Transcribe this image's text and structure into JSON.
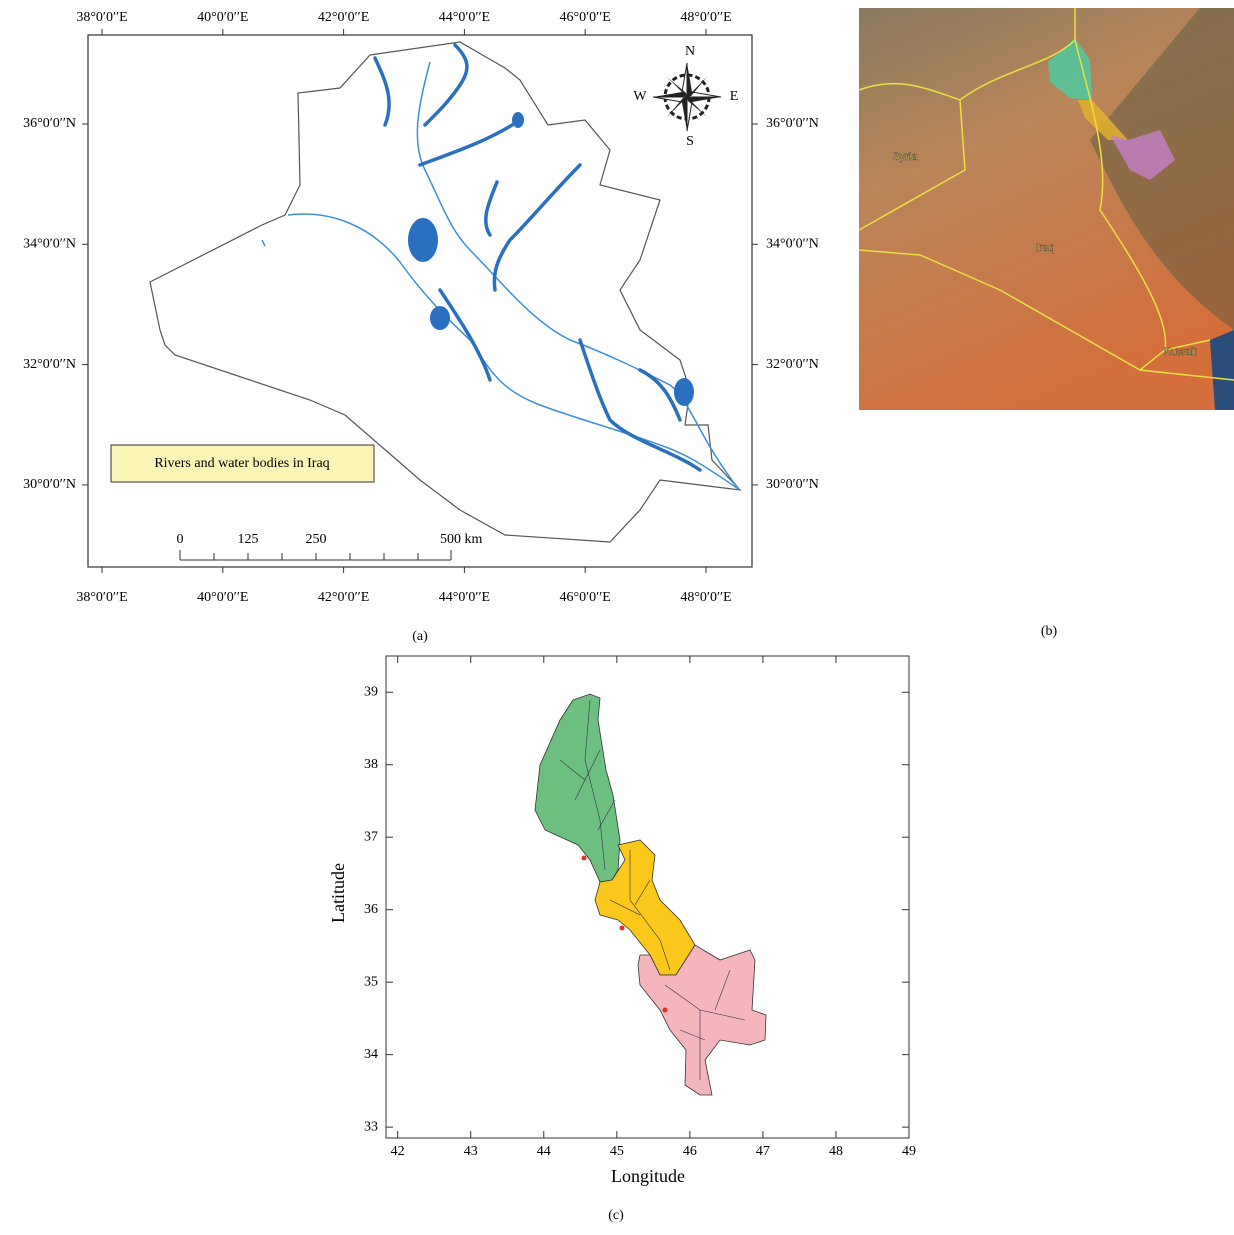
{
  "panel_a": {
    "caption": "(a)",
    "lon_labels": [
      "38°0′0′′E",
      "40°0′0′′E",
      "42°0′0′′E",
      "44°0′0′′E",
      "46°0′0′′E",
      "48°0′0′′E"
    ],
    "lat_labels": [
      "36°0′0′′N",
      "34°0′0′′N",
      "32°0′0′′N",
      "30°0′0′′N"
    ],
    "compass": {
      "n": "N",
      "e": "E",
      "s": "S",
      "w": "W"
    },
    "legend": "Rivers and water bodies in Iraq",
    "scale_labels": [
      "0",
      "125",
      "250",
      "500 km"
    ]
  },
  "panel_b": {
    "caption": "(b)",
    "labels": [
      "Syria",
      "Iraq",
      "Kuwait"
    ]
  },
  "panel_c": {
    "caption": "(c)",
    "chart_data": {
      "type": "map-plot",
      "xlabel": "Longitude",
      "ylabel": "Latitude",
      "xlim": [
        41.84,
        49
      ],
      "xticks": [
        42,
        43,
        44,
        45,
        46,
        47,
        48,
        49
      ],
      "ylim": [
        32.85,
        39.5
      ],
      "yticks": [
        33,
        34,
        35,
        36,
        37,
        38,
        39
      ]
    }
  }
}
